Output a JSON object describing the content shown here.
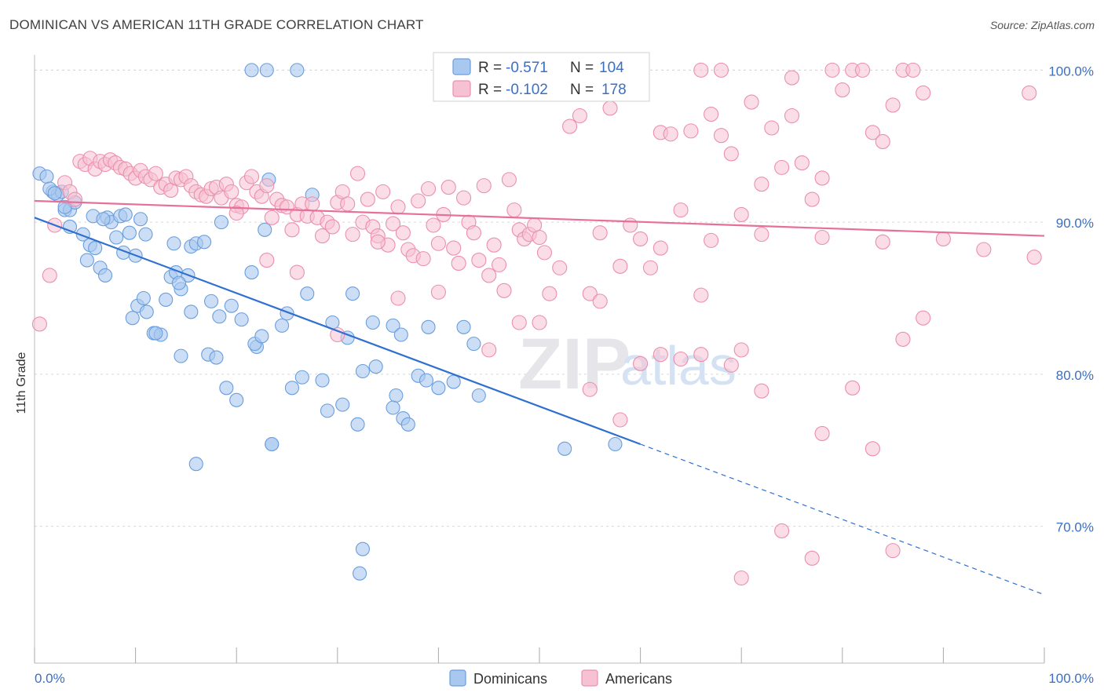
{
  "title": "DOMINICAN VS AMERICAN 11TH GRADE CORRELATION CHART",
  "source": "Source: ZipAtlas.com",
  "watermark": "ZIPatlas",
  "colors": {
    "blue_fill": "#a9c8ef",
    "blue_stroke": "#6a9ede",
    "blue_line": "#2f6fd0",
    "pink_fill": "#f6c1d2",
    "pink_stroke": "#ec8fae",
    "pink_line": "#e6709a",
    "tick_text": "#3a6fc4",
    "grid": "#d8d8d8"
  },
  "chart_data": {
    "type": "scatter",
    "xlabel": "",
    "ylabel": "11th Grade",
    "xlim": [
      0,
      100
    ],
    "ylim": [
      61,
      101
    ],
    "x_tick_labels": [
      "0.0%",
      "100.0%"
    ],
    "y_ticks": [
      {
        "value": 100,
        "label": "100.0%"
      },
      {
        "value": 90,
        "label": "90.0%"
      },
      {
        "value": 80,
        "label": "80.0%"
      },
      {
        "value": 70,
        "label": "70.0%"
      }
    ],
    "grid": "horizontal dashed",
    "legend": {
      "placement": "top-center",
      "entries": [
        {
          "r_label": "R =",
          "r_value": "-0.571",
          "n_label": "N =",
          "n_value": "104"
        },
        {
          "r_label": "R =",
          "r_value": "-0.102",
          "n_label": "N =",
          "n_value": "178"
        }
      ]
    },
    "series": [
      {
        "name": "Dominicans",
        "color": "#a9c8ef",
        "trend": {
          "x0": 0,
          "y0": 90.3,
          "x1": 60,
          "y1": 75.4,
          "dashed_to_x": 100,
          "dashed_to_y": 65.5
        },
        "points": [
          [
            0.5,
            93.2
          ],
          [
            1.2,
            93.0
          ],
          [
            1.8,
            92.0
          ],
          [
            2.3,
            91.8
          ],
          [
            2.7,
            92.0
          ],
          [
            3.0,
            90.8
          ],
          [
            3.5,
            90.8
          ],
          [
            4.0,
            91.3
          ],
          [
            3.5,
            89.7
          ],
          [
            4.8,
            89.2
          ],
          [
            5.5,
            88.5
          ],
          [
            6.0,
            88.3
          ],
          [
            5.2,
            87.5
          ],
          [
            6.5,
            87.0
          ],
          [
            7.0,
            86.5
          ],
          [
            5.8,
            90.4
          ],
          [
            7.2,
            90.3
          ],
          [
            7.6,
            90.0
          ],
          [
            8.1,
            89.0
          ],
          [
            8.5,
            90.4
          ],
          [
            9.0,
            90.5
          ],
          [
            9.4,
            89.3
          ],
          [
            8.8,
            88.0
          ],
          [
            10.0,
            87.8
          ],
          [
            10.5,
            90.2
          ],
          [
            11.0,
            89.2
          ],
          [
            10.2,
            84.5
          ],
          [
            9.7,
            83.7
          ],
          [
            11.1,
            84.1
          ],
          [
            11.8,
            82.7
          ],
          [
            12.5,
            82.6
          ],
          [
            12.0,
            82.7
          ],
          [
            13.0,
            84.9
          ],
          [
            13.5,
            86.4
          ],
          [
            14.0,
            86.7
          ],
          [
            14.5,
            85.6
          ],
          [
            15.2,
            86.5
          ],
          [
            13.8,
            88.6
          ],
          [
            15.5,
            88.4
          ],
          [
            16.0,
            88.6
          ],
          [
            16.8,
            88.7
          ],
          [
            18.5,
            90.0
          ],
          [
            15.5,
            84.1
          ],
          [
            17.5,
            84.8
          ],
          [
            14.5,
            81.2
          ],
          [
            17.2,
            81.3
          ],
          [
            18.0,
            81.1
          ],
          [
            19.5,
            84.5
          ],
          [
            20.5,
            83.6
          ],
          [
            21.5,
            86.7
          ],
          [
            22.0,
            81.8
          ],
          [
            21.8,
            82.0
          ],
          [
            22.5,
            82.5
          ],
          [
            22.8,
            89.5
          ],
          [
            23.2,
            92.8
          ],
          [
            21.5,
            100.0
          ],
          [
            23.0,
            100.0
          ],
          [
            26.0,
            100.0
          ],
          [
            27.5,
            91.8
          ],
          [
            25.0,
            84.0
          ],
          [
            24.5,
            83.2
          ],
          [
            26.5,
            79.8
          ],
          [
            25.5,
            79.1
          ],
          [
            28.5,
            79.6
          ],
          [
            29.5,
            83.4
          ],
          [
            31.0,
            82.4
          ],
          [
            31.5,
            85.3
          ],
          [
            30.5,
            78.0
          ],
          [
            29.0,
            77.6
          ],
          [
            32.5,
            80.2
          ],
          [
            33.5,
            83.4
          ],
          [
            33.8,
            80.5
          ],
          [
            32.0,
            76.7
          ],
          [
            35.5,
            83.2
          ],
          [
            35.8,
            78.6
          ],
          [
            35.5,
            77.8
          ],
          [
            36.5,
            77.1
          ],
          [
            37.0,
            76.7
          ],
          [
            36.3,
            82.6
          ],
          [
            38.0,
            79.9
          ],
          [
            38.8,
            79.6
          ],
          [
            39.0,
            83.1
          ],
          [
            40.0,
            79.1
          ],
          [
            41.5,
            79.5
          ],
          [
            42.5,
            83.1
          ],
          [
            43.5,
            82.0
          ],
          [
            44.0,
            78.6
          ],
          [
            20.0,
            78.3
          ],
          [
            19.0,
            79.1
          ],
          [
            23.5,
            75.4
          ],
          [
            27.0,
            85.3
          ],
          [
            16.0,
            74.1
          ],
          [
            32.5,
            68.5
          ],
          [
            32.2,
            66.9
          ],
          [
            23.5,
            75.4
          ],
          [
            52.5,
            75.1
          ],
          [
            57.5,
            75.4
          ],
          [
            14.3,
            86.0
          ],
          [
            10.8,
            85.0
          ],
          [
            18.3,
            83.8
          ],
          [
            3.0,
            91.0
          ],
          [
            1.5,
            92.2
          ],
          [
            2.0,
            91.9
          ],
          [
            6.8,
            90.2
          ]
        ]
      },
      {
        "name": "Americans",
        "color": "#f6c1d2",
        "trend": {
          "x0": 0,
          "y0": 91.4,
          "x1": 100,
          "y1": 89.1
        },
        "points": [
          [
            0.5,
            83.3
          ],
          [
            1.5,
            86.5
          ],
          [
            2.0,
            89.8
          ],
          [
            3.0,
            92.6
          ],
          [
            3.5,
            92.0
          ],
          [
            4.0,
            91.5
          ],
          [
            4.5,
            94.0
          ],
          [
            5.0,
            93.8
          ],
          [
            5.5,
            94.2
          ],
          [
            6.0,
            93.5
          ],
          [
            6.5,
            94.0
          ],
          [
            7.0,
            93.8
          ],
          [
            7.5,
            94.1
          ],
          [
            8.0,
            93.9
          ],
          [
            8.5,
            93.6
          ],
          [
            9.0,
            93.5
          ],
          [
            9.5,
            93.2
          ],
          [
            10.0,
            92.9
          ],
          [
            10.5,
            93.4
          ],
          [
            11.0,
            93.0
          ],
          [
            11.5,
            92.8
          ],
          [
            12.0,
            93.2
          ],
          [
            12.5,
            92.3
          ],
          [
            13.0,
            92.5
          ],
          [
            13.5,
            92.1
          ],
          [
            14.0,
            92.9
          ],
          [
            14.5,
            92.8
          ],
          [
            15.0,
            93.0
          ],
          [
            15.5,
            92.4
          ],
          [
            16.0,
            92.0
          ],
          [
            16.5,
            91.8
          ],
          [
            17.0,
            91.7
          ],
          [
            17.5,
            92.2
          ],
          [
            18.0,
            92.3
          ],
          [
            18.5,
            91.6
          ],
          [
            19.0,
            92.5
          ],
          [
            19.5,
            92.0
          ],
          [
            20.0,
            91.1
          ],
          [
            20.5,
            91.0
          ],
          [
            21.0,
            92.6
          ],
          [
            21.5,
            93.0
          ],
          [
            22.0,
            92.0
          ],
          [
            22.5,
            91.7
          ],
          [
            23.0,
            92.4
          ],
          [
            23.5,
            90.3
          ],
          [
            24.0,
            91.5
          ],
          [
            24.5,
            91.1
          ],
          [
            25.0,
            91.0
          ],
          [
            25.5,
            89.5
          ],
          [
            26.0,
            90.5
          ],
          [
            26.5,
            91.2
          ],
          [
            27.0,
            90.4
          ],
          [
            27.5,
            91.2
          ],
          [
            28.0,
            90.3
          ],
          [
            28.5,
            89.1
          ],
          [
            29.0,
            90.0
          ],
          [
            29.5,
            89.7
          ],
          [
            30.0,
            91.3
          ],
          [
            30.5,
            92.0
          ],
          [
            31.0,
            91.2
          ],
          [
            31.5,
            89.2
          ],
          [
            32.0,
            93.2
          ],
          [
            32.5,
            90.0
          ],
          [
            33.0,
            91.5
          ],
          [
            33.5,
            89.7
          ],
          [
            34.0,
            89.1
          ],
          [
            34.5,
            92.0
          ],
          [
            35.0,
            88.5
          ],
          [
            35.5,
            89.9
          ],
          [
            36.0,
            91.0
          ],
          [
            36.5,
            89.3
          ],
          [
            37.0,
            88.2
          ],
          [
            37.5,
            87.8
          ],
          [
            38.0,
            91.4
          ],
          [
            38.5,
            87.6
          ],
          [
            39.0,
            92.2
          ],
          [
            39.5,
            89.8
          ],
          [
            40.0,
            88.6
          ],
          [
            40.5,
            90.5
          ],
          [
            41.0,
            92.3
          ],
          [
            41.5,
            88.3
          ],
          [
            42.0,
            87.3
          ],
          [
            42.5,
            91.6
          ],
          [
            43.0,
            90.0
          ],
          [
            43.5,
            89.3
          ],
          [
            44.0,
            87.5
          ],
          [
            44.5,
            92.4
          ],
          [
            45.0,
            86.5
          ],
          [
            45.5,
            88.5
          ],
          [
            46.0,
            87.2
          ],
          [
            46.5,
            85.5
          ],
          [
            47.0,
            92.8
          ],
          [
            47.5,
            90.8
          ],
          [
            48.0,
            89.5
          ],
          [
            48.5,
            88.9
          ],
          [
            49.0,
            89.2
          ],
          [
            49.5,
            89.8
          ],
          [
            50.0,
            89.0
          ],
          [
            50.5,
            88.0
          ],
          [
            51.0,
            85.3
          ],
          [
            52.0,
            87.0
          ],
          [
            53.0,
            96.3
          ],
          [
            54.0,
            97.0
          ],
          [
            55.0,
            85.3
          ],
          [
            56.0,
            84.8
          ],
          [
            57.0,
            97.5
          ],
          [
            58.0,
            87.1
          ],
          [
            59.0,
            89.8
          ],
          [
            60.0,
            88.9
          ],
          [
            61.0,
            87.0
          ],
          [
            62.0,
            95.9
          ],
          [
            63.0,
            95.8
          ],
          [
            64.0,
            90.8
          ],
          [
            65.0,
            96.0
          ],
          [
            66.0,
            85.2
          ],
          [
            67.0,
            97.1
          ],
          [
            68.0,
            95.7
          ],
          [
            69.0,
            94.5
          ],
          [
            70.0,
            90.5
          ],
          [
            71.0,
            97.9
          ],
          [
            72.0,
            92.5
          ],
          [
            73.0,
            96.2
          ],
          [
            74.0,
            93.6
          ],
          [
            75.0,
            97.0
          ],
          [
            76.0,
            93.9
          ],
          [
            77.0,
            91.5
          ],
          [
            78.0,
            92.9
          ],
          [
            79.0,
            100.0
          ],
          [
            80.0,
            98.7
          ],
          [
            81.0,
            100.0
          ],
          [
            82.0,
            100.0
          ],
          [
            83.0,
            95.9
          ],
          [
            84.0,
            95.3
          ],
          [
            85.0,
            97.7
          ],
          [
            86.0,
            100.0
          ],
          [
            87.0,
            100.0
          ],
          [
            88.0,
            98.5
          ],
          [
            66.0,
            100.0
          ],
          [
            68.0,
            100.0
          ],
          [
            75.0,
            99.5
          ],
          [
            34.0,
            88.7
          ],
          [
            36.0,
            85.0
          ],
          [
            40.0,
            85.4
          ],
          [
            45.0,
            81.6
          ],
          [
            48.0,
            83.4
          ],
          [
            50.0,
            83.4
          ],
          [
            55.0,
            79.0
          ],
          [
            58.0,
            77.0
          ],
          [
            60.0,
            80.7
          ],
          [
            62.0,
            81.3
          ],
          [
            64.0,
            81.0
          ],
          [
            66.0,
            81.3
          ],
          [
            69.0,
            80.6
          ],
          [
            70.0,
            81.6
          ],
          [
            72.0,
            78.9
          ],
          [
            74.0,
            69.7
          ],
          [
            77.0,
            67.9
          ],
          [
            78.0,
            76.1
          ],
          [
            81.0,
            79.1
          ],
          [
            83.0,
            75.1
          ],
          [
            85.0,
            68.4
          ],
          [
            86.0,
            82.3
          ],
          [
            88.0,
            83.7
          ],
          [
            70.0,
            66.6
          ],
          [
            30.0,
            82.6
          ],
          [
            26.0,
            86.7
          ],
          [
            23.0,
            87.5
          ],
          [
            20.0,
            90.6
          ],
          [
            56.0,
            89.3
          ],
          [
            62.0,
            88.3
          ],
          [
            67.0,
            88.8
          ],
          [
            72.0,
            89.2
          ],
          [
            78.0,
            89.0
          ],
          [
            84.0,
            88.7
          ],
          [
            90.0,
            88.9
          ],
          [
            94.0,
            88.2
          ],
          [
            99.0,
            87.7
          ],
          [
            98.5,
            98.5
          ]
        ]
      }
    ]
  },
  "legend_bottom": {
    "items": [
      {
        "label": "Dominicans"
      },
      {
        "label": "Americans"
      }
    ]
  }
}
